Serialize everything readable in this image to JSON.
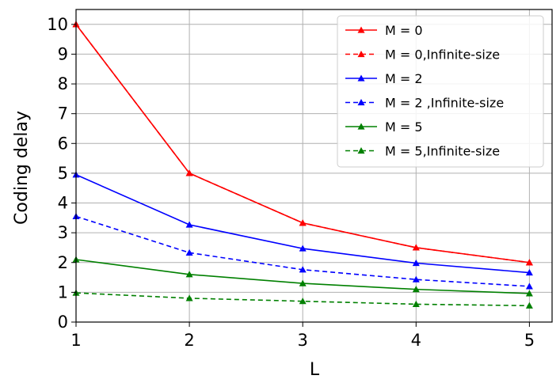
{
  "chart_data": {
    "type": "line",
    "title": "",
    "xlabel": "L",
    "ylabel": "Coding delay",
    "x": [
      1,
      2,
      3,
      4,
      5
    ],
    "xticks": [
      "1",
      "2",
      "3",
      "4",
      "5"
    ],
    "yticks": [
      "0",
      "1",
      "2",
      "3",
      "4",
      "5",
      "6",
      "7",
      "8",
      "9",
      "10"
    ],
    "xlim": [
      1,
      5.2
    ],
    "ylim": [
      0,
      10.5
    ],
    "grid": true,
    "legend_position": "top-right",
    "series": [
      {
        "name": "M = 0",
        "color": "#ff0000",
        "style": "solid",
        "marker": "triangle",
        "values": [
          10,
          5,
          3.33,
          2.5,
          2
        ]
      },
      {
        "name": "M = 0,Infinite-size",
        "color": "#ff0000",
        "style": "dashed",
        "marker": "triangle",
        "values": [
          10,
          5,
          3.33,
          2.5,
          2
        ]
      },
      {
        "name": "M = 2",
        "color": "#0000ff",
        "style": "solid",
        "marker": "triangle",
        "values": [
          4.95,
          3.27,
          2.47,
          1.98,
          1.66
        ]
      },
      {
        "name": " M = 2 ,Infinite-size",
        "color": "#0000ff",
        "style": "dashed",
        "marker": "triangle",
        "values": [
          3.55,
          2.33,
          1.76,
          1.43,
          1.2
        ]
      },
      {
        "name": "M = 5",
        "color": "#008000",
        "style": "solid",
        "marker": "triangle",
        "values": [
          2.1,
          1.6,
          1.3,
          1.1,
          0.96
        ]
      },
      {
        "name": "M = 5,Infinite-size",
        "color": "#008000",
        "style": "dashed",
        "marker": "triangle",
        "values": [
          0.98,
          0.8,
          0.7,
          0.6,
          0.55
        ]
      }
    ]
  }
}
